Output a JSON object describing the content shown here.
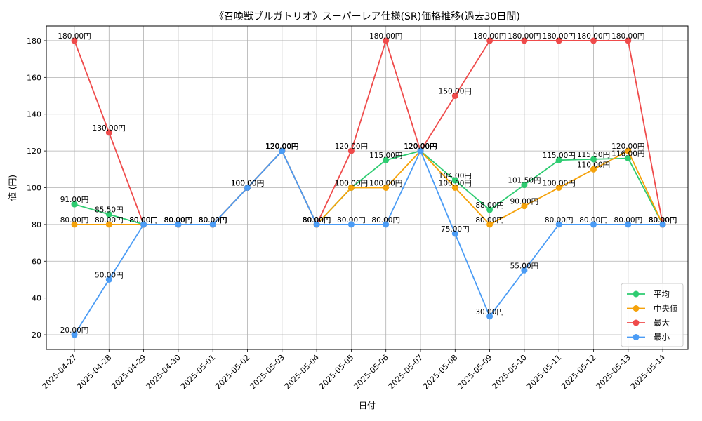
{
  "chart_data": {
    "type": "line",
    "title": "《召喚獣ブルガトリオ》スーパーレア仕様(SR)価格推移(過去30日間)",
    "xlabel": "日付",
    "ylabel": "値 (円)",
    "ylim": [
      12,
      188
    ],
    "yticks": [
      20,
      40,
      60,
      80,
      100,
      120,
      140,
      160,
      180
    ],
    "grid": true,
    "legend_position": "bottom-right",
    "unit_suffix": "円",
    "x": [
      "2025-04-27",
      "2025-04-28",
      "2025-04-29",
      "2025-04-30",
      "2025-05-01",
      "2025-05-02",
      "2025-05-03",
      "2025-05-04",
      "2025-05-05",
      "2025-05-06",
      "2025-05-07",
      "2025-05-08",
      "2025-05-09",
      "2025-05-10",
      "2025-05-11",
      "2025-05-12",
      "2025-05-13",
      "2025-05-14"
    ],
    "series": [
      {
        "name": "平均",
        "color": "#2ecc71",
        "values": [
          91,
          85.5,
          80,
          80,
          80,
          100,
          120,
          80,
          100,
          115,
          120,
          104,
          88,
          101.5,
          115,
          115.5,
          116,
          80
        ]
      },
      {
        "name": "中央値",
        "color": "#f5a20a",
        "values": [
          80,
          80,
          80,
          80,
          80,
          100,
          120,
          80,
          100,
          100,
          120,
          100,
          80,
          90,
          100,
          110,
          120,
          80
        ]
      },
      {
        "name": "最大",
        "color": "#ef4b4b",
        "values": [
          180,
          130,
          80,
          80,
          80,
          100,
          120,
          80,
          120,
          180,
          120,
          150,
          180,
          180,
          180,
          180,
          180,
          80
        ]
      },
      {
        "name": "最小",
        "color": "#4b9cf5",
        "values": [
          20,
          50,
          80,
          80,
          80,
          100,
          120,
          80,
          80,
          80,
          120,
          75,
          30,
          55,
          80,
          80,
          80,
          80
        ]
      }
    ]
  }
}
